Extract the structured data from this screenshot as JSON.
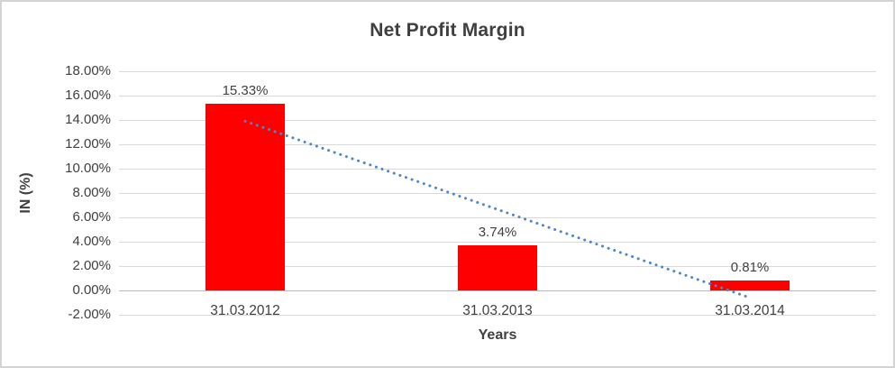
{
  "chart_data": {
    "type": "bar",
    "title": "Net Profit Margin",
    "xlabel": "Years",
    "ylabel": "IN (%)",
    "categories": [
      "31.03.2012",
      "31.03.2013",
      "31.03.2014"
    ],
    "values": [
      15.33,
      3.74,
      0.81
    ],
    "value_labels": [
      "15.33%",
      "3.74%",
      "0.81%"
    ],
    "ylim": [
      -2,
      18
    ],
    "ytick_step": 2,
    "ytick_labels": [
      "18.00%",
      "16.00%",
      "14.00%",
      "12.00%",
      "10.00%",
      "8.00%",
      "6.00%",
      "4.00%",
      "2.00%",
      "0.00%",
      "-2.00%"
    ],
    "grid": true,
    "legend": "none",
    "bar_color": "#ff0000",
    "gridline_color": "#d9d9d9",
    "zero_axis_color": "#b8b8b8",
    "text_color": "#404040",
    "trendline": {
      "type": "linear",
      "style": "dotted",
      "color": "#4e87c8",
      "start_value": 13.9,
      "end_value": -0.6
    }
  }
}
